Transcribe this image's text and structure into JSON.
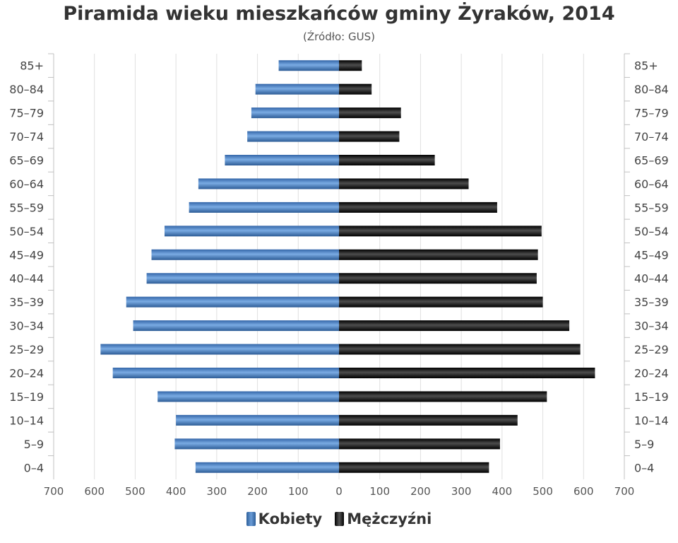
{
  "chart_data": {
    "type": "bar",
    "orientation": "horizontal",
    "title": "Piramida wieku mieszkańców gminy Żyraków, 2014",
    "subtitle": "(Źródło: GUS)",
    "categories": [
      "85+",
      "80–84",
      "75–79",
      "70–74",
      "65–69",
      "60–64",
      "55–59",
      "50–54",
      "45–49",
      "40–44",
      "35–39",
      "30–34",
      "25–29",
      "20–24",
      "15–19",
      "10–14",
      "5–9",
      "0–4"
    ],
    "series": [
      {
        "name": "Kobiety",
        "color": "#4a80c0",
        "values": [
          148,
          205,
          215,
          225,
          280,
          345,
          368,
          428,
          460,
          472,
          522,
          505,
          585,
          555,
          445,
          400,
          403,
          352
        ]
      },
      {
        "name": "Mężczyźni",
        "color": "#1a1a1a",
        "values": [
          56,
          80,
          152,
          148,
          235,
          318,
          388,
          497,
          488,
          485,
          500,
          565,
          592,
          628,
          510,
          438,
          395,
          368
        ]
      }
    ],
    "xlim": [
      -700,
      700
    ],
    "xticks": [
      "700",
      "600",
      "500",
      "400",
      "300",
      "200",
      "100",
      "0",
      "100",
      "200",
      "300",
      "400",
      "500",
      "600",
      "700"
    ],
    "grid": true,
    "legend_position": "bottom-center"
  },
  "colors": {
    "female_bar": "#4a80c0",
    "male_bar": "#1a1a1a",
    "grid": "#e0e0e0",
    "axis": "#c0c0c0"
  }
}
